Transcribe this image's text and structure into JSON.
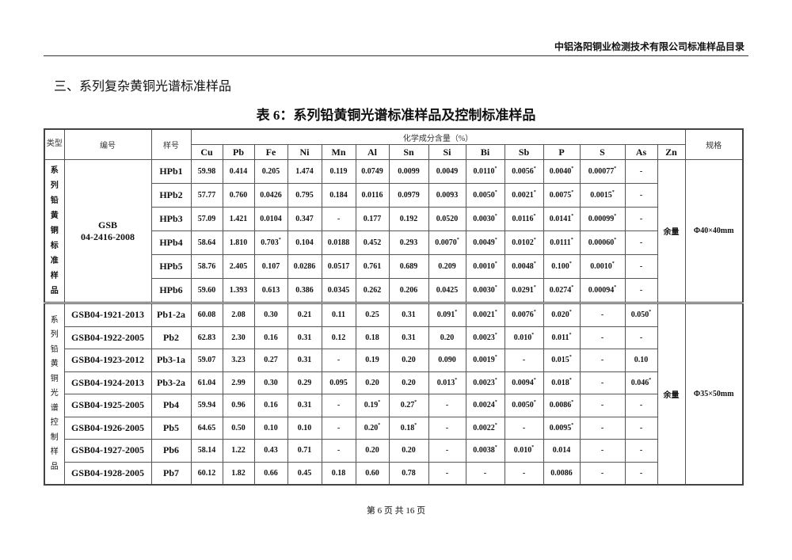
{
  "header": {
    "company": "中铝洛阳铜业检测技术有限公司标准样品目录"
  },
  "section_title": "三、系列复杂黄铜光谱标准样品",
  "table_caption": "表 6：系列铅黄铜光谱标准样品及控制标准样品",
  "table": {
    "col_type": "类型",
    "col_code": "编号",
    "col_sample": "样号",
    "col_chem": "化学成分含量（%）",
    "col_spec": "规格",
    "elements": [
      "Cu",
      "Pb",
      "Fe",
      "Ni",
      "Mn",
      "Al",
      "Sn",
      "Si",
      "Bi",
      "Sb",
      "P",
      "S",
      "As",
      "Zn"
    ],
    "groups": [
      {
        "type": "系列铅黄铜标准样品",
        "code": "GSB 04-2416-2008",
        "zn": "余量",
        "spec": "Φ40×40mm",
        "rows": [
          {
            "sample": "HPb1",
            "values": [
              "59.98",
              "0.414",
              "0.205",
              "1.474",
              "0.119",
              "0.0749",
              "0.0099",
              "0.0049",
              "0.0110*",
              "0.0056*",
              "0.0040*",
              "0.00077*",
              "-"
            ]
          },
          {
            "sample": "HPb2",
            "values": [
              "57.77",
              "0.760",
              "0.0426",
              "0.795",
              "0.184",
              "0.0116",
              "0.0979",
              "0.0093",
              "0.0050*",
              "0.0021*",
              "0.0075*",
              "0.0015*",
              "-"
            ]
          },
          {
            "sample": "HPb3",
            "values": [
              "57.09",
              "1.421",
              "0.0104",
              "0.347",
              "-",
              "0.177",
              "0.192",
              "0.0520",
              "0.0030*",
              "0.0116*",
              "0.0141*",
              "0.00099*",
              "-"
            ]
          },
          {
            "sample": "HPb4",
            "values": [
              "58.64",
              "1.810",
              "0.703*",
              "0.104",
              "0.0188",
              "0.452",
              "0.293",
              "0.0070*",
              "0.0049*",
              "0.0102*",
              "0.0111*",
              "0.00060*",
              "-"
            ]
          },
          {
            "sample": "HPb5",
            "values": [
              "58.76",
              "2.405",
              "0.107",
              "0.0286",
              "0.0517",
              "0.761",
              "0.689",
              "0.209",
              "0.0010*",
              "0.0048*",
              "0.100*",
              "0.0010*",
              "-"
            ]
          },
          {
            "sample": "HPb6",
            "values": [
              "59.60",
              "1.393",
              "0.613",
              "0.386",
              "0.0345",
              "0.262",
              "0.206",
              "0.0425",
              "0.0030*",
              "0.0291*",
              "0.0274*",
              "0.00094*",
              "-"
            ]
          }
        ]
      },
      {
        "type": "系列铅黄铜光谱控制样品",
        "zn": "余量",
        "spec": "Φ35×50mm",
        "rows": [
          {
            "code": "GSB04-1921-2013",
            "sample": "Pb1-2a",
            "values": [
              "60.08",
              "2.08",
              "0.30",
              "0.21",
              "0.11",
              "0.25",
              "0.31",
              "0.091*",
              "0.0021*",
              "0.0076*",
              "0.020*",
              "-",
              "0.050*"
            ]
          },
          {
            "code": "GSB04-1922-2005",
            "sample": "Pb2",
            "values": [
              "62.83",
              "2.30",
              "0.16",
              "0.31",
              "0.12",
              "0.18",
              "0.31",
              "0.20",
              "0.0023*",
              "0.010*",
              "0.011*",
              "-",
              "-"
            ]
          },
          {
            "code": "GSB04-1923-2012",
            "sample": "Pb3-1a",
            "values": [
              "59.07",
              "3.23",
              "0.27",
              "0.31",
              "-",
              "0.19",
              "0.20",
              "0.090",
              "0.0019*",
              "-",
              "0.015*",
              "-",
              "0.10"
            ]
          },
          {
            "code": "GSB04-1924-2013",
            "sample": "Pb3-2a",
            "values": [
              "61.04",
              "2.99",
              "0.30",
              "0.29",
              "0.095",
              "0.20",
              "0.20",
              "0.013*",
              "0.0023*",
              "0.0094*",
              "0.018*",
              "-",
              "0.046*"
            ]
          },
          {
            "code": "GSB04-1925-2005",
            "sample": "Pb4",
            "values": [
              "59.94",
              "0.96",
              "0.16",
              "0.31",
              "-",
              "0.19*",
              "0.27*",
              "-",
              "0.0024*",
              "0.0050*",
              "0.0086*",
              "-",
              "-"
            ]
          },
          {
            "code": "GSB04-1926-2005",
            "sample": "Pb5",
            "values": [
              "64.65",
              "0.50",
              "0.10",
              "0.10",
              "-",
              "0.20*",
              "0.18*",
              "-",
              "0.0022*",
              "-",
              "0.0095*",
              "-",
              "-"
            ]
          },
          {
            "code": "GSB04-1927-2005",
            "sample": "Pb6",
            "values": [
              "58.14",
              "1.22",
              "0.43",
              "0.71",
              "-",
              "0.20",
              "0.20",
              "-",
              "0.0038*",
              "0.010*",
              "0.014",
              "-",
              "-"
            ]
          },
          {
            "code": "GSB04-1928-2005",
            "sample": "Pb7",
            "values": [
              "60.12",
              "1.82",
              "0.66",
              "0.45",
              "0.18",
              "0.60",
              "0.78",
              "-",
              "-",
              "-",
              "0.0086",
              "-",
              "-"
            ]
          }
        ]
      }
    ]
  },
  "footer": {
    "page": "第 6 页 共 16 页"
  }
}
